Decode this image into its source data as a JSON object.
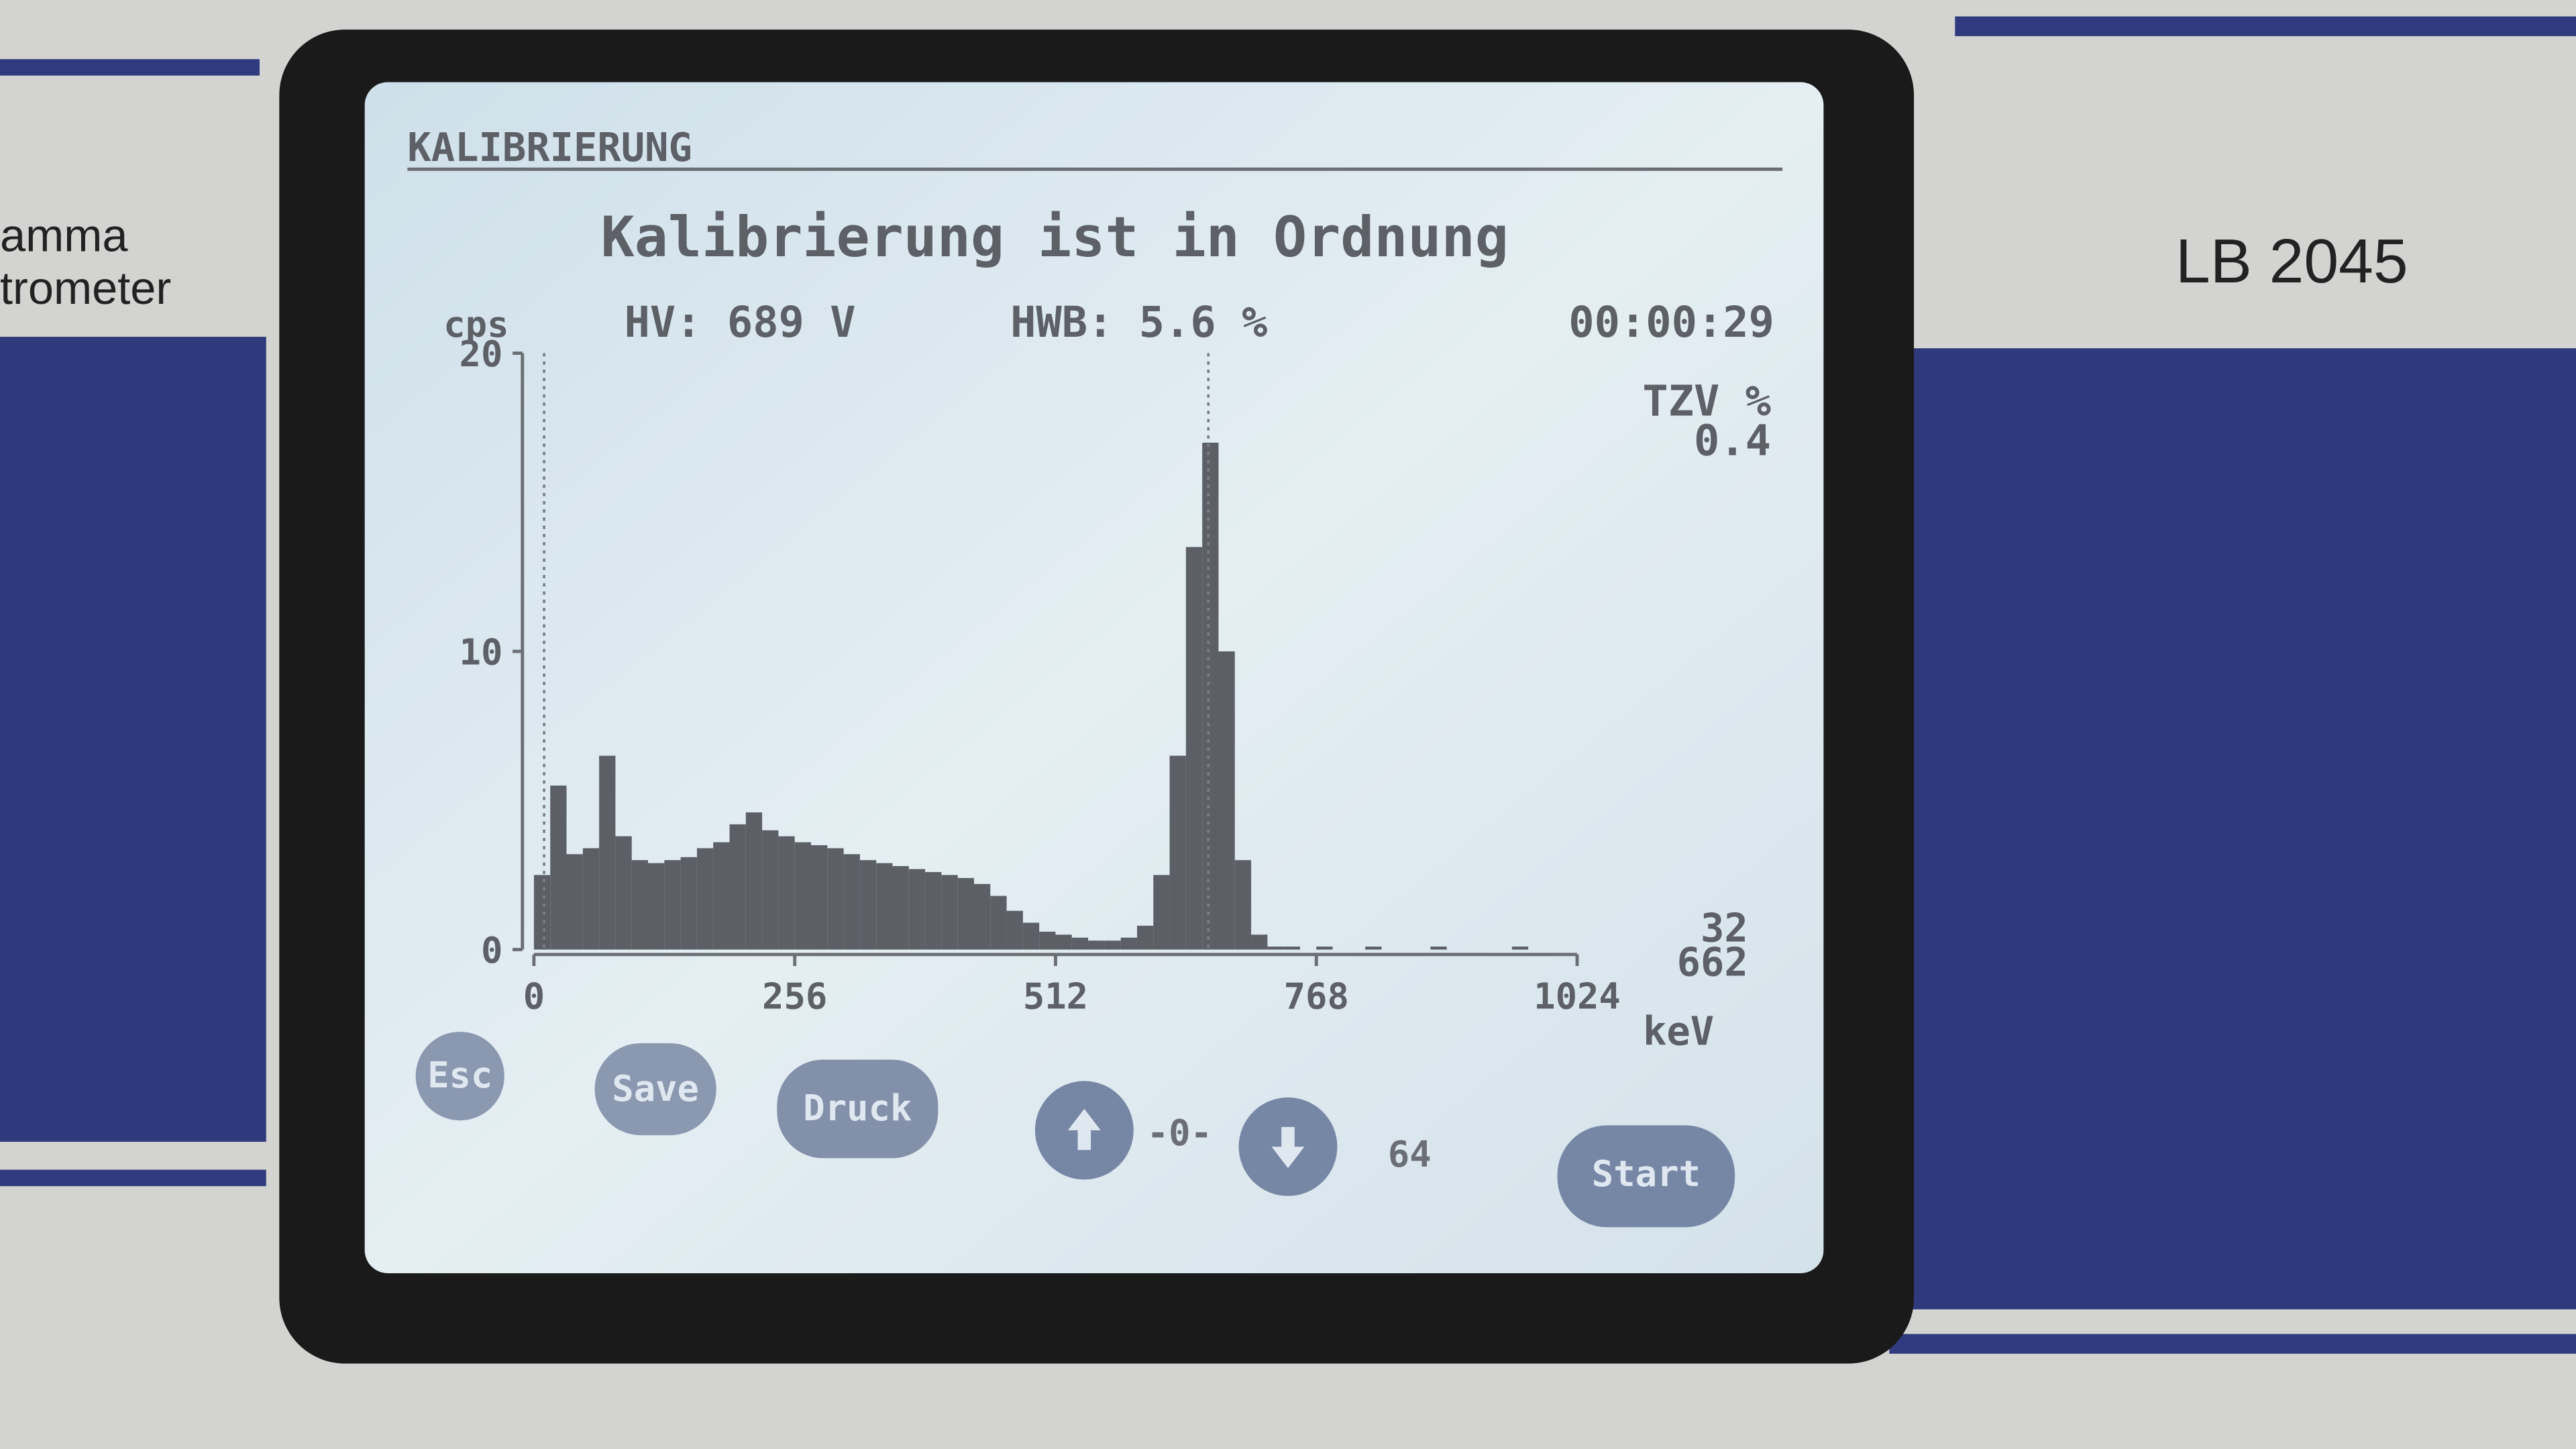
{
  "device": {
    "model": "LB 2045",
    "side_label_1": "amma",
    "side_label_2": "trometer"
  },
  "screen": {
    "title": "KALIBRIERUNG",
    "message": "Kalibrierung ist in Ordnung",
    "hv": "HV: 689 V",
    "hwb": "HWB: 5.6 %",
    "time": "00:00:29",
    "tzv_label": "TZV %",
    "tzv_value": "0.4",
    "right_top": "32",
    "right_bottom": "662",
    "buttons": {
      "esc": "Esc",
      "save": "Save",
      "druck": "Druck",
      "zero": "-0-",
      "step": "64",
      "start": "Start"
    }
  },
  "chart_data": {
    "type": "histogram",
    "y_label": "cps",
    "x_label": "keV",
    "color": "#5c5f66",
    "bins": [
      0,
      16,
      32,
      48,
      64,
      80,
      96,
      112,
      128,
      144,
      160,
      176,
      192,
      208,
      224,
      240,
      256,
      272,
      288,
      304,
      320,
      336,
      352,
      368,
      384,
      400,
      416,
      432,
      448,
      464,
      480,
      496,
      512,
      528,
      544,
      560,
      576,
      592,
      608,
      624,
      640,
      656,
      672,
      688,
      704,
      720,
      736,
      752,
      768,
      784,
      800,
      816,
      832,
      848,
      864,
      880,
      896,
      912,
      928,
      944,
      960,
      976,
      992,
      1008,
      1024
    ],
    "values": [
      2.5,
      5.5,
      3.2,
      3.4,
      6.5,
      3.8,
      3,
      2.9,
      3,
      3.1,
      3.4,
      3.6,
      4.2,
      4.6,
      4,
      3.8,
      3.6,
      3.5,
      3.4,
      3.2,
      3,
      2.9,
      2.8,
      2.7,
      2.6,
      2.5,
      2.4,
      2.2,
      1.8,
      1.3,
      0.9,
      0.6,
      0.5,
      0.4,
      0.3,
      0.3,
      0.4,
      0.8,
      2.5,
      6.5,
      13.5,
      17,
      10,
      3,
      0.5,
      0.1,
      0.1,
      0,
      0.1,
      0,
      0,
      0.1,
      0,
      0,
      0,
      0.1,
      0,
      0,
      0,
      0,
      0.1,
      0,
      0,
      0
    ],
    "xlim": [
      0,
      1024
    ],
    "xticks": [
      0,
      256,
      512,
      768,
      1024
    ],
    "ylim": [
      0,
      20
    ],
    "yticks": [
      0,
      10,
      20
    ],
    "markers": [
      10,
      662
    ]
  }
}
